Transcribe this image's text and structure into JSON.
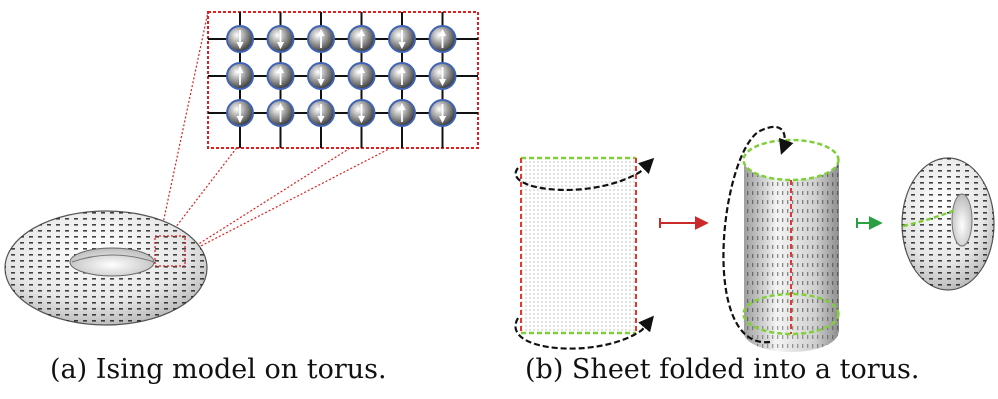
{
  "captions": {
    "a": "(a) Ising model on torus.",
    "b": "(b) Sheet folded into a torus."
  },
  "lattice": {
    "rows": 3,
    "cols": 6,
    "spins": [
      [
        "down",
        "down",
        "up",
        "up",
        "down",
        "up"
      ],
      [
        "up",
        "up",
        "down",
        "up",
        "up",
        "down"
      ],
      [
        "down",
        "up",
        "down",
        "down",
        "up",
        "down"
      ]
    ]
  },
  "colors": {
    "zoom_box": "#e02020",
    "seam_green": "#7fcf3a",
    "seam_red": "#e03a2a",
    "fold_arrow": "#111111",
    "step_arrow_1": "#cc2a2a",
    "step_arrow_2": "#2aa040",
    "spin_rim": "#3f63b5"
  }
}
